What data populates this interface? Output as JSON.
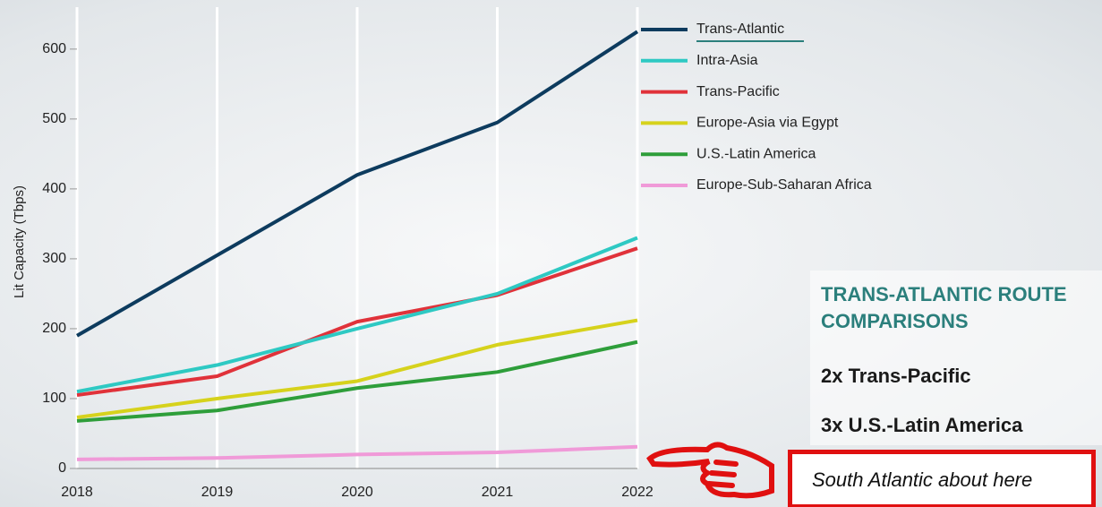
{
  "chart_data": {
    "type": "line",
    "y_label": "Lit Capacity (Tbps)",
    "x": [
      2018,
      2019,
      2020,
      2021,
      2022
    ],
    "xlim": [
      2018,
      2022
    ],
    "xticks": [
      2018,
      2019,
      2020,
      2021,
      2022
    ],
    "ylim": [
      0,
      660
    ],
    "yticks": [
      0,
      100,
      200,
      300,
      400,
      500,
      600
    ],
    "grid": true,
    "legend": "top-right",
    "series": [
      {
        "name": "Trans-Atlantic",
        "color": "#0d3b5e",
        "values": [
          190,
          305,
          420,
          495,
          625
        ]
      },
      {
        "name": "Intra-Asia",
        "color": "#2ec9c3",
        "values": [
          110,
          148,
          200,
          250,
          330
        ]
      },
      {
        "name": "Trans-Pacific",
        "color": "#e0323a",
        "values": [
          105,
          132,
          210,
          248,
          315
        ]
      },
      {
        "name": "Europe-Asia via Egypt",
        "color": "#d6d21c",
        "values": [
          73,
          100,
          125,
          177,
          212
        ]
      },
      {
        "name": "U.S.-Latin America",
        "color": "#2e9e3a",
        "values": [
          68,
          83,
          115,
          138,
          181
        ]
      },
      {
        "name": "Europe-Sub-Saharan Africa",
        "color": "#f09ad8",
        "values": [
          13,
          15,
          20,
          23,
          31
        ]
      }
    ],
    "panel": {
      "title": "TRANS-ATLANTIC ROUTE COMPARISONS",
      "lines": [
        "2x Trans-Pacific",
        "3x U.S.-Latin America"
      ]
    },
    "callout": "South Atlantic about here"
  }
}
